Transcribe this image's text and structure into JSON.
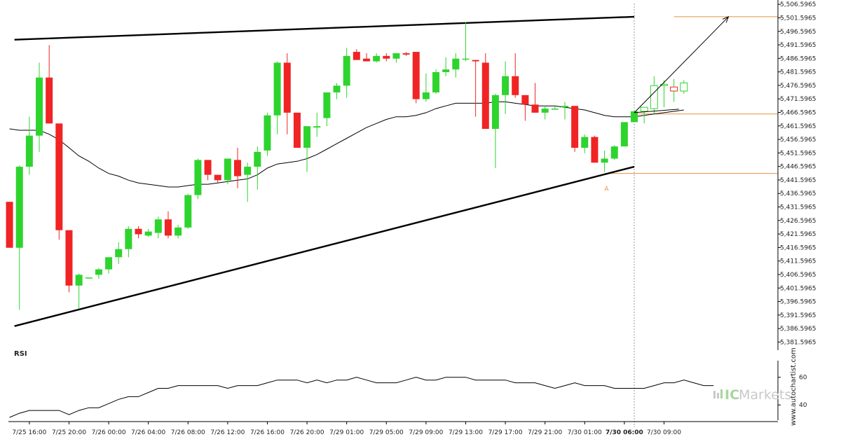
{
  "chart_data": {
    "type": "candlestick",
    "instrument_note": "",
    "y_ticks": [
      "5,506.5965",
      "5,501.5965",
      "5,496.5965",
      "5,491.5965",
      "5,486.5965",
      "5,481.5965",
      "5,476.5965",
      "5,471.5965",
      "5,466.5965",
      "5,461.5965",
      "5,456.5965",
      "5,451.5965",
      "5,446.5965",
      "5,441.5965",
      "5,436.5965",
      "5,431.5965",
      "5,426.5965",
      "5,421.5965",
      "5,416.5965",
      "5,411.5965",
      "5,406.5965",
      "5,401.5965",
      "5,396.5965",
      "5,391.5965",
      "5,386.5965",
      "5,381.5965"
    ],
    "ylim": [
      5378.6,
      5508.2
    ],
    "x_ticks": [
      {
        "label": "7/25 16:00",
        "bar": 2,
        "bold": false
      },
      {
        "label": "7/25 20:00",
        "bar": 6,
        "bold": false
      },
      {
        "label": "7/26 00:00",
        "bar": 10,
        "bold": false
      },
      {
        "label": "7/26 04:00",
        "bar": 14,
        "bold": false
      },
      {
        "label": "7/26 08:00",
        "bar": 18,
        "bold": false
      },
      {
        "label": "7/26 12:00",
        "bar": 22,
        "bold": false
      },
      {
        "label": "7/26 16:00",
        "bar": 26,
        "bold": false
      },
      {
        "label": "7/26 20:00",
        "bar": 30,
        "bold": false
      },
      {
        "label": "7/29 01:00",
        "bar": 34,
        "bold": false
      },
      {
        "label": "7/29 05:00",
        "bar": 38,
        "bold": false
      },
      {
        "label": "7/29 09:00",
        "bar": 42,
        "bold": false
      },
      {
        "label": "7/29 13:00",
        "bar": 46,
        "bold": false
      },
      {
        "label": "7/29 17:00",
        "bar": 50,
        "bold": false
      },
      {
        "label": "7/29 21:00",
        "bar": 54,
        "bold": false
      },
      {
        "label": "7/30 01:00",
        "bar": 58,
        "bold": false
      },
      {
        "label": "7/30 06:00",
        "bar": 62,
        "bold": true
      },
      {
        "label": "7/30 09:00",
        "bar": 66,
        "bold": false
      }
    ],
    "candles": [
      {
        "o": 5433.5,
        "h": 5433.5,
        "l": 5416.5,
        "c": 5416.5
      },
      {
        "o": 5416.5,
        "h": 5447.0,
        "l": 5393.5,
        "c": 5446.5
      },
      {
        "o": 5446.5,
        "h": 5465.0,
        "l": 5443.5,
        "c": 5458.0
      },
      {
        "o": 5458.0,
        "h": 5485.0,
        "l": 5452.0,
        "c": 5479.5
      },
      {
        "o": 5479.5,
        "h": 5491.5,
        "l": 5462.5,
        "c": 5462.5
      },
      {
        "o": 5462.5,
        "h": 5462.5,
        "l": 5419.5,
        "c": 5423.0
      },
      {
        "o": 5423.0,
        "h": 5423.0,
        "l": 5400.0,
        "c": 5402.5
      },
      {
        "o": 5402.5,
        "h": 5407.0,
        "l": 5394.0,
        "c": 5406.5
      },
      {
        "o": 5405.5,
        "h": 5405.5,
        "l": 5405.5,
        "c": 5405.5
      },
      {
        "o": 5406.5,
        "h": 5409.0,
        "l": 5405.0,
        "c": 5408.5
      },
      {
        "o": 5408.5,
        "h": 5413.0,
        "l": 5407.0,
        "c": 5413.0
      },
      {
        "o": 5413.0,
        "h": 5418.5,
        "l": 5410.5,
        "c": 5416.0
      },
      {
        "o": 5416.0,
        "h": 5424.5,
        "l": 5413.0,
        "c": 5423.5
      },
      {
        "o": 5423.5,
        "h": 5424.5,
        "l": 5420.0,
        "c": 5421.5
      },
      {
        "o": 5421.0,
        "h": 5423.5,
        "l": 5420.5,
        "c": 5422.5
      },
      {
        "o": 5422.0,
        "h": 5428.0,
        "l": 5420.0,
        "c": 5427.0
      },
      {
        "o": 5427.0,
        "h": 5430.0,
        "l": 5420.0,
        "c": 5421.0
      },
      {
        "o": 5421.0,
        "h": 5425.0,
        "l": 5420.0,
        "c": 5424.0
      },
      {
        "o": 5424.0,
        "h": 5436.5,
        "l": 5423.5,
        "c": 5436.0
      },
      {
        "o": 5436.0,
        "h": 5449.5,
        "l": 5434.5,
        "c": 5449.0
      },
      {
        "o": 5449.0,
        "h": 5449.0,
        "l": 5441.5,
        "c": 5443.5
      },
      {
        "o": 5443.5,
        "h": 5443.5,
        "l": 5440.5,
        "c": 5441.5
      },
      {
        "o": 5441.5,
        "h": 5449.5,
        "l": 5440.0,
        "c": 5449.5
      },
      {
        "o": 5449.0,
        "h": 5453.5,
        "l": 5438.5,
        "c": 5443.0
      },
      {
        "o": 5443.5,
        "h": 5448.0,
        "l": 5433.5,
        "c": 5446.5
      },
      {
        "o": 5446.5,
        "h": 5454.0,
        "l": 5438.0,
        "c": 5452.0
      },
      {
        "o": 5452.5,
        "h": 5466.5,
        "l": 5450.5,
        "c": 5465.5
      },
      {
        "o": 5465.5,
        "h": 5485.5,
        "l": 5458.5,
        "c": 5485.0
      },
      {
        "o": 5485.0,
        "h": 5488.5,
        "l": 5458.5,
        "c": 5466.5
      },
      {
        "o": 5466.5,
        "h": 5466.5,
        "l": 5453.5,
        "c": 5453.5
      },
      {
        "o": 5453.5,
        "h": 5461.5,
        "l": 5444.5,
        "c": 5461.5
      },
      {
        "o": 5461.0,
        "h": 5466.5,
        "l": 5457.5,
        "c": 5461.5
      },
      {
        "o": 5464.5,
        "h": 5474.0,
        "l": 5461.5,
        "c": 5474.0
      },
      {
        "o": 5474.0,
        "h": 5477.5,
        "l": 5471.5,
        "c": 5476.5
      },
      {
        "o": 5476.5,
        "h": 5490.5,
        "l": 5472.0,
        "c": 5487.5
      },
      {
        "o": 5489.0,
        "h": 5490.0,
        "l": 5486.0,
        "c": 5486.0
      },
      {
        "o": 5486.5,
        "h": 5488.5,
        "l": 5485.5,
        "c": 5485.5
      },
      {
        "o": 5485.5,
        "h": 5488.5,
        "l": 5485.0,
        "c": 5487.5
      },
      {
        "o": 5487.5,
        "h": 5488.5,
        "l": 5485.5,
        "c": 5486.5
      },
      {
        "o": 5486.5,
        "h": 5488.5,
        "l": 5485.0,
        "c": 5488.5
      },
      {
        "o": 5488.5,
        "h": 5489.0,
        "l": 5487.5,
        "c": 5488.0
      },
      {
        "o": 5489.0,
        "h": 5489.0,
        "l": 5470.0,
        "c": 5471.5
      },
      {
        "o": 5471.5,
        "h": 5481.0,
        "l": 5470.5,
        "c": 5474.0
      },
      {
        "o": 5474.0,
        "h": 5482.5,
        "l": 5473.5,
        "c": 5481.5
      },
      {
        "o": 5481.5,
        "h": 5487.0,
        "l": 5480.0,
        "c": 5482.5
      },
      {
        "o": 5482.5,
        "h": 5488.5,
        "l": 5479.5,
        "c": 5486.5
      },
      {
        "o": 5486.5,
        "h": 5500.0,
        "l": 5485.5,
        "c": 5486.5
      },
      {
        "o": 5486.0,
        "h": 5486.0,
        "l": 5465.0,
        "c": 5485.5
      },
      {
        "o": 5485.0,
        "h": 5488.5,
        "l": 5460.5,
        "c": 5460.5
      },
      {
        "o": 5460.5,
        "h": 5473.5,
        "l": 5446.0,
        "c": 5473.0
      },
      {
        "o": 5473.0,
        "h": 5485.5,
        "l": 5466.0,
        "c": 5480.0
      },
      {
        "o": 5480.0,
        "h": 5488.5,
        "l": 5472.0,
        "c": 5473.0
      },
      {
        "o": 5473.0,
        "h": 5473.0,
        "l": 5463.5,
        "c": 5469.5
      },
      {
        "o": 5469.5,
        "h": 5477.5,
        "l": 5466.5,
        "c": 5466.5
      },
      {
        "o": 5466.5,
        "h": 5469.0,
        "l": 5464.0,
        "c": 5468.0
      },
      {
        "o": 5468.0,
        "h": 5469.0,
        "l": 5468.0,
        "c": 5468.0
      },
      {
        "o": 5468.5,
        "h": 5470.5,
        "l": 5464.0,
        "c": 5469.0
      },
      {
        "o": 5469.0,
        "h": 5469.0,
        "l": 5452.0,
        "c": 5453.5
      },
      {
        "o": 5453.5,
        "h": 5458.5,
        "l": 5451.5,
        "c": 5457.5
      },
      {
        "o": 5457.5,
        "h": 5458.0,
        "l": 5448.0,
        "c": 5448.0
      },
      {
        "o": 5448.0,
        "h": 5452.5,
        "l": 5444.5,
        "c": 5449.5
      },
      {
        "o": 5449.5,
        "h": 5454.5,
        "l": 5449.0,
        "c": 5454.0
      },
      {
        "o": 5454.0,
        "h": 5463.0,
        "l": 5454.0,
        "c": 5463.0
      },
      {
        "o": 5463.0,
        "h": 5467.5,
        "l": 5463.0,
        "c": 5467.0
      },
      {
        "o": 5467.0,
        "h": 5468.5,
        "l": 5462.5,
        "c": 5468.5,
        "hollow": true
      },
      {
        "o": 5468.0,
        "h": 5480.0,
        "l": 5466.0,
        "c": 5476.5,
        "hollow": true
      },
      {
        "o": 5476.5,
        "h": 5478.5,
        "l": 5468.5,
        "c": 5477.0,
        "hollow": true
      },
      {
        "o": 5476.0,
        "h": 5479.0,
        "l": 5470.5,
        "c": 5474.5,
        "hollow": true
      },
      {
        "o": 5474.5,
        "h": 5478.5,
        "l": 5473.5,
        "c": 5477.5,
        "hollow": true
      }
    ],
    "moving_average": [
      5460.5,
      5460.0,
      5460.0,
      5460.0,
      5458.5,
      5456.5,
      5453.5,
      5450.5,
      5448.5,
      5446.0,
      5444.0,
      5443.0,
      5441.5,
      5440.5,
      5440.0,
      5439.5,
      5439.0,
      5439.0,
      5439.5,
      5440.0,
      5440.0,
      5440.5,
      5441.0,
      5441.5,
      5442.0,
      5443.5,
      5446.0,
      5447.5,
      5448.0,
      5448.5,
      5449.5,
      5451.0,
      5453.0,
      5455.0,
      5457.0,
      5459.0,
      5461.0,
      5462.5,
      5464.0,
      5465.0,
      5465.0,
      5465.5,
      5466.5,
      5468.0,
      5469.0,
      5470.0,
      5470.0,
      5470.0,
      5470.0,
      5470.5,
      5470.5,
      5470.0,
      5469.5,
      5469.0,
      5469.0,
      5469.0,
      5468.5,
      5468.0,
      5467.5,
      5466.5,
      5465.5,
      5465.0,
      5465.0,
      5465.0,
      5465.5,
      5466.0,
      5466.5,
      5467.0,
      5467.5
    ],
    "rsi": {
      "label": "RSI",
      "ticks": [
        60,
        40
      ],
      "ylim": [
        30,
        72
      ],
      "values": [
        31,
        34,
        36,
        36,
        36,
        36,
        33,
        36,
        38,
        38,
        41,
        44,
        46,
        46,
        49,
        52,
        52,
        54,
        54,
        54,
        54,
        54,
        52,
        54,
        54,
        54,
        56,
        58,
        58,
        58,
        56,
        58,
        56,
        58,
        58,
        60,
        58,
        56,
        56,
        56,
        58,
        60,
        58,
        58,
        60,
        60,
        60,
        58,
        58,
        58,
        58,
        56,
        56,
        56,
        54,
        52,
        54,
        56,
        54,
        54,
        54,
        52,
        52,
        52,
        52,
        54,
        56,
        56,
        58,
        56,
        54,
        54
      ]
    },
    "trendlines": [
      {
        "name": "upper-resistance",
        "from": {
          "bar": 0.5,
          "y": 5493.5
        },
        "to": {
          "bar": 63.0,
          "y": 5502.0
        }
      },
      {
        "name": "lower-support",
        "from": {
          "bar": 0.5,
          "y": 5387.5
        },
        "to": {
          "bar": 63.0,
          "y": 5446.5
        }
      }
    ],
    "projection": {
      "from": {
        "bar": 63.0,
        "y": 5466.5
      },
      "to": {
        "bar": 72.5,
        "y": 5502.0
      },
      "forecast_base": {
        "from": {
          "bar": 63.0,
          "y": 5466.5
        },
        "to": {
          "bar": 67.5,
          "y": 5467.8
        }
      }
    },
    "levels": [
      {
        "name": "target-level",
        "y": 5502.0,
        "from_bar": 67.0
      },
      {
        "name": "entry-level",
        "y": 5466.0,
        "from_bar": 63.0
      },
      {
        "name": "breakout-level",
        "y": 5444.0,
        "from_bar": 60.0
      }
    ],
    "pattern_point": {
      "label": "A",
      "bar": 60.2,
      "y": 5442.0
    },
    "divider_bar": 63.0,
    "colors": {
      "up": "#2ed42e",
      "down": "#f02424",
      "hollow": "#2ed42e",
      "ma": "#000000",
      "trend": "#000000",
      "level": "#e8903c",
      "divider": "#999999"
    },
    "grid": false
  },
  "watermark": {
    "vertical": "www.autochartist.com",
    "brand_prefix": "IC",
    "brand_suffix": "Markets"
  }
}
